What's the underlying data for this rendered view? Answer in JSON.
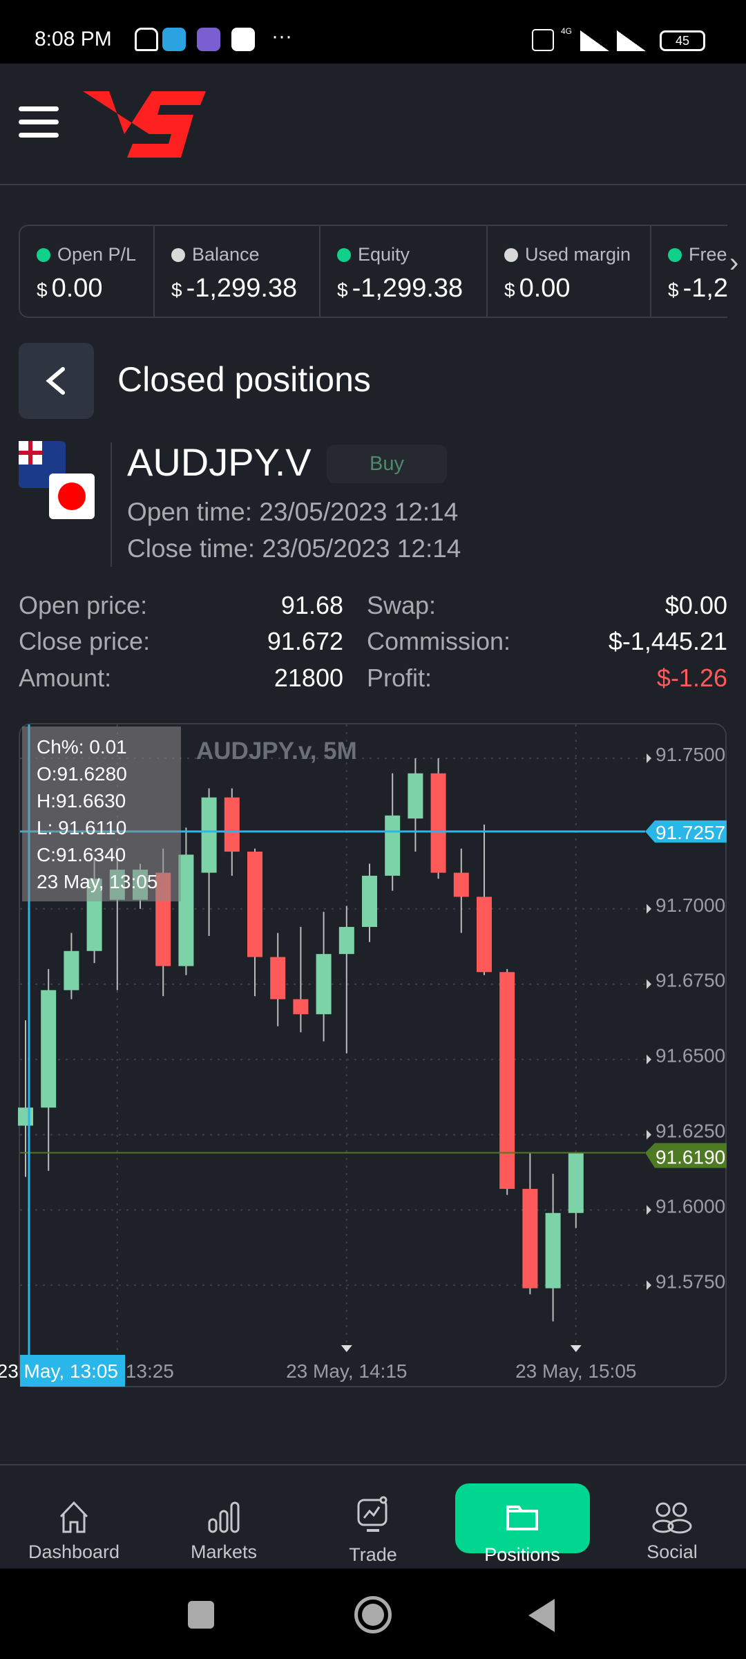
{
  "status_bar": {
    "time": "8:08 PM",
    "more": "···",
    "network": "4G",
    "battery": "45"
  },
  "header": {
    "logo": "VS"
  },
  "summary": [
    {
      "label": "Open P/L",
      "currency": "$",
      "value": "0.00",
      "dot": "#0fd18a"
    },
    {
      "label": "Balance",
      "currency": "$",
      "value": "-1,299.38",
      "dot": "#d9d9d9"
    },
    {
      "label": "Equity",
      "currency": "$",
      "value": "-1,299.38",
      "dot": "#0fd18a"
    },
    {
      "label": "Used margin",
      "currency": "$",
      "value": "0.00",
      "dot": "#d9d9d9"
    },
    {
      "label": "Free",
      "currency": "$",
      "value": "-1,2",
      "dot": "#0fd18a"
    }
  ],
  "page": {
    "title": "Closed positions"
  },
  "position": {
    "symbol": "AUDJPY.V",
    "side": "Buy",
    "open_time": "Open time: 23/05/2023 12:14",
    "close_time": "Close time: 23/05/2023 12:14",
    "details_left": [
      {
        "label": "Open price:",
        "value": "91.68"
      },
      {
        "label": "Close price:",
        "value": "91.672"
      },
      {
        "label": "Amount:",
        "value": "21800"
      }
    ],
    "details_right": [
      {
        "label": "Swap:",
        "value": "$0.00"
      },
      {
        "label": "Commission:",
        "value": "$-1,445.21"
      },
      {
        "label": "Profit:",
        "value": "$-1.26"
      }
    ],
    "profit_color": "#ff5a5a"
  },
  "chart_data": {
    "type": "candlestick",
    "title": "AUDJPY.v, 5M",
    "tooltip": {
      "change": "Ch%: 0.01",
      "open": "O:91.6280",
      "high": "H:91.6630",
      "low": "L: 91.6110",
      "close": "C:91.6340",
      "time": "23 May, 13:05"
    },
    "ylim": [
      91.555,
      91.759
    ],
    "y_ticks": [
      "91.7500",
      "91.7000",
      "91.6750",
      "91.6500",
      "91.6250",
      "91.6000",
      "91.5750"
    ],
    "x_ticks": [
      {
        "label": "13:25",
        "index": 4
      },
      {
        "label": "23 May, 14:15",
        "index": 14
      },
      {
        "label": "23 May, 15:05",
        "index": 24
      }
    ],
    "crosshair": {
      "price": "91.7257",
      "time": "23 May, 13:05",
      "index": 0
    },
    "current_price": "91.6190",
    "colors": {
      "up": "#7dd3a8",
      "down": "#ff5a5a",
      "crosshair": "#29b6e8",
      "current": "#4d7a22"
    },
    "ohlc": [
      [
        91.628,
        91.663,
        91.611,
        91.634
      ],
      [
        91.634,
        91.68,
        91.613,
        91.673
      ],
      [
        91.673,
        91.692,
        91.67,
        91.686
      ],
      [
        91.686,
        91.717,
        91.682,
        91.71
      ],
      [
        91.703,
        91.72,
        91.673,
        91.713
      ],
      [
        91.703,
        91.715,
        91.7,
        91.713
      ],
      [
        91.712,
        91.72,
        91.671,
        91.681
      ],
      [
        91.681,
        91.727,
        91.678,
        91.718
      ],
      [
        91.712,
        91.74,
        91.691,
        91.737
      ],
      [
        91.737,
        91.74,
        91.711,
        91.719
      ],
      [
        91.719,
        91.72,
        91.671,
        91.684
      ],
      [
        91.684,
        91.692,
        91.661,
        91.67
      ],
      [
        91.67,
        91.694,
        91.659,
        91.665
      ],
      [
        91.665,
        91.699,
        91.656,
        91.685
      ],
      [
        91.685,
        91.701,
        91.652,
        91.694
      ],
      [
        91.694,
        91.715,
        91.689,
        91.711
      ],
      [
        91.711,
        91.745,
        91.706,
        91.731
      ],
      [
        91.73,
        91.75,
        91.719,
        91.745
      ],
      [
        91.745,
        91.75,
        91.71,
        91.712
      ],
      [
        91.712,
        91.72,
        91.692,
        91.704
      ],
      [
        91.704,
        91.728,
        91.678,
        91.679
      ],
      [
        91.679,
        91.68,
        91.605,
        91.607
      ],
      [
        91.607,
        91.619,
        91.572,
        91.574
      ],
      [
        91.574,
        91.612,
        91.563,
        91.599
      ],
      [
        91.599,
        91.619,
        91.594,
        91.619
      ]
    ]
  },
  "nav": [
    {
      "label": "Dashboard",
      "icon": "home-icon"
    },
    {
      "label": "Markets",
      "icon": "markets-icon"
    },
    {
      "label": "Trade",
      "icon": "trade-icon"
    },
    {
      "label": "Positions",
      "icon": "folder-icon",
      "active": true
    },
    {
      "label": "Social",
      "icon": "users-icon"
    }
  ],
  "accent": "#00d68f"
}
